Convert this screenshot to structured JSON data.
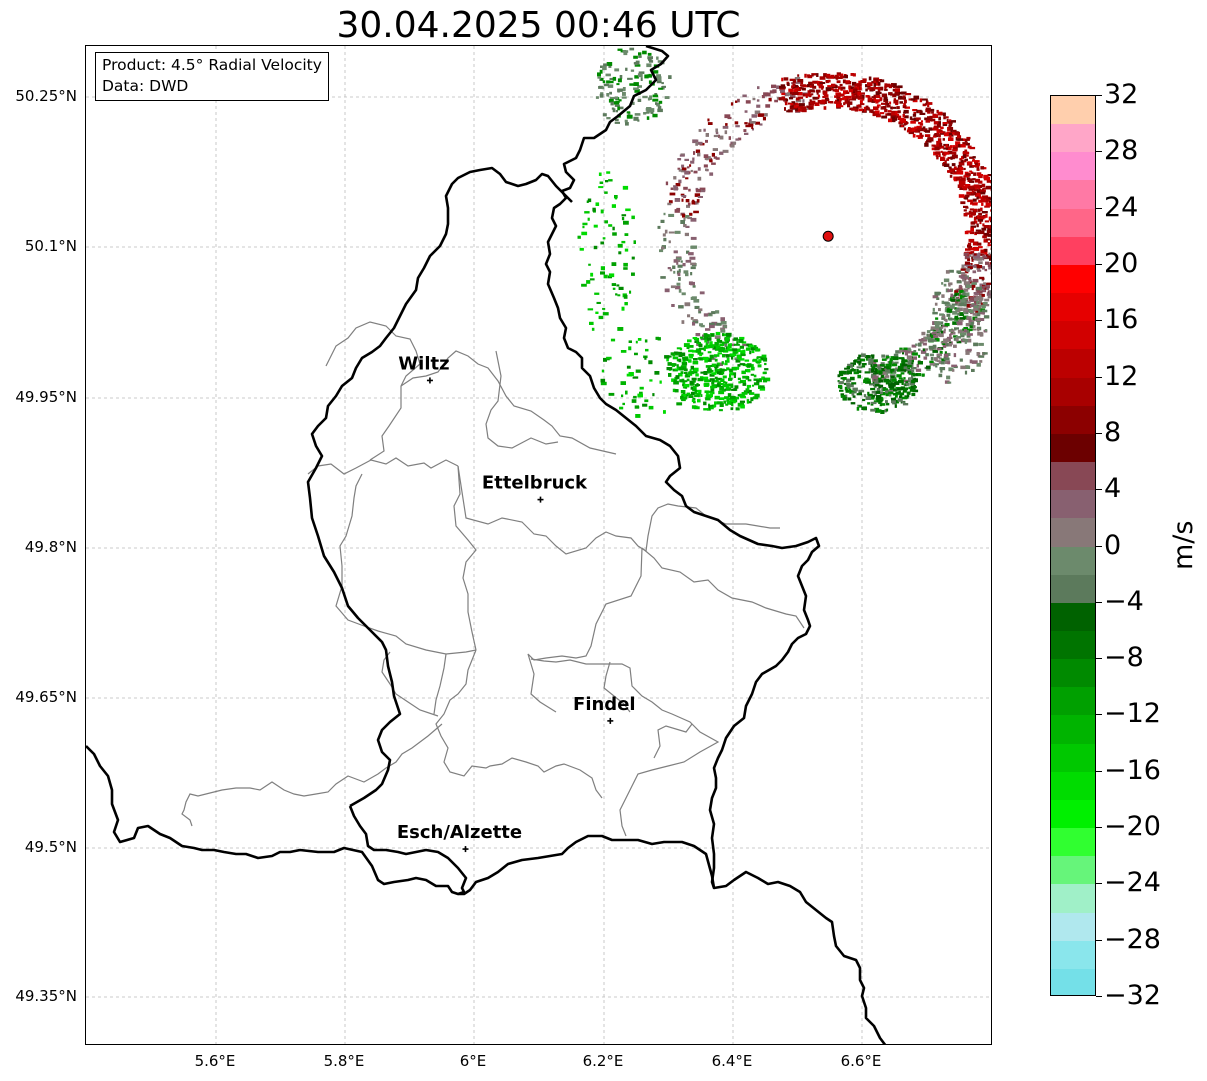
{
  "title": "30.04.2025 00:46 UTC",
  "info": {
    "product": "Product: 4.5° Radial Velocity",
    "data": "Data: DWD"
  },
  "axes": {
    "lat_ticks": [
      "50.25°N",
      "50.1°N",
      "49.95°N",
      "49.8°N",
      "49.65°N",
      "49.5°N",
      "49.35°N"
    ],
    "lon_ticks": [
      "5.6°E",
      "5.8°E",
      "6°E",
      "6.2°E",
      "6.4°E",
      "6.6°E"
    ]
  },
  "cities": [
    {
      "name": "Wiltz",
      "lon": 5.932,
      "lat": 49.966
    },
    {
      "name": "Ettelbruck",
      "lon": 6.103,
      "lat": 49.847
    },
    {
      "name": "Findel",
      "lon": 6.211,
      "lat": 49.626
    },
    {
      "name": "Esch/Alzette",
      "lon": 5.987,
      "lat": 49.498
    }
  ],
  "radar_site": {
    "lon": 6.548,
    "lat": 50.11,
    "color": "#e01010"
  },
  "colorbar": {
    "unit": "m/s",
    "tick_labels": [
      "32",
      "28",
      "24",
      "20",
      "16",
      "12",
      "8",
      "4",
      "0",
      "−4",
      "−8",
      "−12",
      "−16",
      "−20",
      "−24",
      "−28",
      "−32"
    ],
    "colors_top_to_bottom": [
      "#ffcfad",
      "#ffa6c8",
      "#ff8ccf",
      "#ff79a5",
      "#ff6688",
      "#ff4060",
      "#ff0000",
      "#e60000",
      "#d20000",
      "#bc0000",
      "#a80000",
      "#8c0000",
      "#6c0000",
      "#884855",
      "#886070",
      "#887878",
      "#6c8a6c",
      "#5c7a5c",
      "#006200",
      "#007400",
      "#008a00",
      "#00a000",
      "#00b400",
      "#00c800",
      "#00dc00",
      "#00f000",
      "#30ff30",
      "#66f57a",
      "#a0f0c8",
      "#b0e8ee",
      "#8ae6ec",
      "#74e0e8"
    ]
  }
}
